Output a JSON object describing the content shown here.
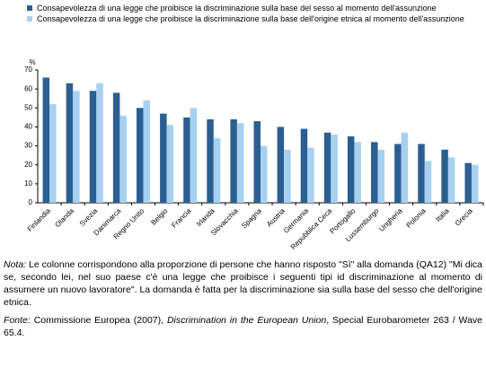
{
  "chart_data": {
    "type": "bar",
    "y_axis_label": "%",
    "categories": [
      "Finlandia",
      "Olanda",
      "Svezia",
      "Danimarca",
      "Regno Unito",
      "Belgio",
      "Francia",
      "Irlanda",
      "Slovacchia",
      "Spagna",
      "Austria",
      "Germania",
      "Repubblica Ceca",
      "Portogallo",
      "Lussemburgo",
      "Ungheria",
      "Polonia",
      "Italia",
      "Grecia"
    ],
    "series": [
      {
        "name": "Consapevolezza di una legge che proibisce la discriminazione sulla base del sesso al momento dell'assunzione",
        "color": "#2b5f91",
        "values": [
          66,
          63,
          59,
          58,
          50,
          47,
          45,
          44,
          44,
          43,
          40,
          39,
          37,
          35,
          32,
          31,
          31,
          28,
          21
        ]
      },
      {
        "name": "Consapevolezza di una legge che proibisce la discriminazione sulla base dell'origine etnica al momento dell'assunzione",
        "color": "#a8d0f0",
        "values": [
          52,
          59,
          63,
          46,
          54,
          41,
          50,
          34,
          42,
          30,
          28,
          29,
          36,
          32,
          28,
          37,
          22,
          24,
          20
        ]
      }
    ],
    "ylim": [
      0,
      70
    ],
    "yticks": [
      0,
      10,
      20,
      30,
      40,
      50,
      60,
      70
    ],
    "grid": false
  },
  "note": {
    "label": "Nota:",
    "text": "Le colonne corrispondono alla proporzione di persone che hanno risposto \"Sì\" alla domanda (QA12) \"Mi dica se, secondo lei, nel suo paese c'è una legge che proibisce i seguenti tipi id discriminazione al momento di assumere un nuovo lavoratore\". La domanda è fatta per la discriminazione sia sulla base del sesso che dell'origine etnica."
  },
  "source": {
    "label": "Fonte:",
    "text": "Commissione Europea (2007),",
    "title": "Discrimination in the European Union",
    "rest": ", Special Eurobarometer 263 / Wave 65.4."
  }
}
